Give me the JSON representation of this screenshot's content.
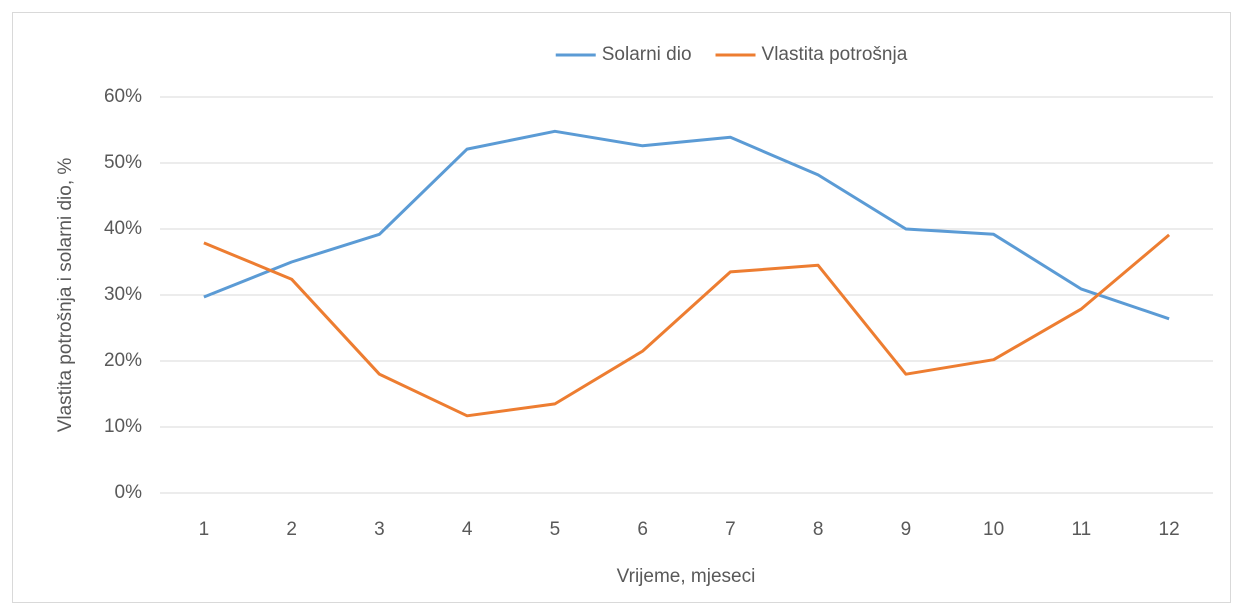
{
  "chart_data": {
    "type": "line",
    "x_label": "Vrijeme, mjeseci",
    "y_label": "Vlastita potrošnja i solarni dio, %",
    "categories": [
      "1",
      "2",
      "3",
      "4",
      "5",
      "6",
      "7",
      "8",
      "9",
      "10",
      "11",
      "12"
    ],
    "series": [
      {
        "name": "Solarni dio",
        "color": "#5b9bd5",
        "values": [
          29.7,
          35.0,
          39.2,
          52.1,
          54.8,
          52.6,
          53.9,
          48.2,
          40.0,
          39.2,
          30.9,
          26.4
        ]
      },
      {
        "name": "Vlastita potrošnja",
        "color": "#ed7d31",
        "values": [
          37.9,
          32.4,
          18.0,
          11.7,
          13.5,
          21.5,
          33.5,
          34.5,
          18.0,
          20.2,
          27.9,
          39.1
        ]
      }
    ],
    "ylim": [
      0,
      60
    ],
    "yticks": [
      {
        "value": 0,
        "label": "0%"
      },
      {
        "value": 10,
        "label": "10%"
      },
      {
        "value": 20,
        "label": "20%"
      },
      {
        "value": 30,
        "label": "30%"
      },
      {
        "value": 40,
        "label": "40%"
      },
      {
        "value": 50,
        "label": "50%"
      },
      {
        "value": 60,
        "label": "60%"
      }
    ],
    "grid": true,
    "legend": "top"
  }
}
